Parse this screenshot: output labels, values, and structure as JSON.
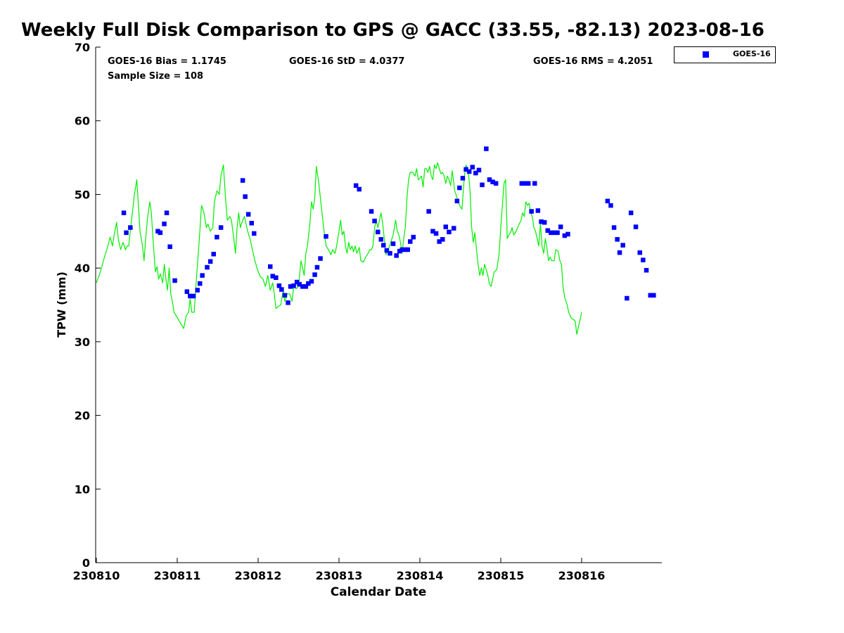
{
  "chart_data": {
    "type": "line+scatter",
    "title": "Weekly Full Disk Comparison to GPS @ GACC (33.55, -82.13) 2023-08-16",
    "xlabel": "Calendar Date",
    "ylabel": "TPW (mm)",
    "xlim": [
      0,
      7
    ],
    "ylim": [
      0,
      70
    ],
    "x_tick_labels": [
      "230810",
      "230811",
      "230812",
      "230813",
      "230814",
      "230815",
      "230816"
    ],
    "y_tick_labels": [
      "0",
      "10",
      "20",
      "30",
      "40",
      "50",
      "60",
      "70"
    ],
    "stats": {
      "bias": "GOES-16 Bias = 1.1745",
      "std": "GOES-16 StD = 4.0377",
      "rms": "GOES-16 RMS = 4.2051",
      "sample": "Sample Size = 108"
    },
    "legend": [
      {
        "label": "GOES-16",
        "color": "#0000ff",
        "marker": "square"
      }
    ],
    "colors": {
      "gps_line": "#00ee00",
      "goes_marker": "#0000ff"
    },
    "gps_series": {
      "name": "GPS",
      "points": [
        [
          0.0,
          38.0
        ],
        [
          0.05,
          39.5
        ],
        [
          0.1,
          41.5
        ],
        [
          0.13,
          42.5
        ],
        [
          0.17,
          44.2
        ],
        [
          0.2,
          43.0
        ],
        [
          0.22,
          44.5
        ],
        [
          0.25,
          46.2
        ],
        [
          0.27,
          44.0
        ],
        [
          0.3,
          42.5
        ],
        [
          0.33,
          43.5
        ],
        [
          0.36,
          42.5
        ],
        [
          0.38,
          43.0
        ],
        [
          0.4,
          43.0
        ],
        [
          0.43,
          46.0
        ],
        [
          0.45,
          48.0
        ],
        [
          0.47,
          50.0
        ],
        [
          0.5,
          52.0
        ],
        [
          0.52,
          48.5
        ],
        [
          0.54,
          45.0
        ],
        [
          0.57,
          43.0
        ],
        [
          0.59,
          41.0
        ],
        [
          0.61,
          44.0
        ],
        [
          0.63,
          46.5
        ],
        [
          0.66,
          49.0
        ],
        [
          0.68,
          47.5
        ],
        [
          0.7,
          44.0
        ],
        [
          0.73,
          39.5
        ],
        [
          0.75,
          40.2
        ],
        [
          0.77,
          38.5
        ],
        [
          0.79,
          39.2
        ],
        [
          0.82,
          38.0
        ],
        [
          0.84,
          40.5
        ],
        [
          0.86,
          38.5
        ],
        [
          0.88,
          37.0
        ],
        [
          0.9,
          40.0
        ],
        [
          0.92,
          36.5
        ],
        [
          0.94,
          35.5
        ],
        [
          0.96,
          34.0
        ],
        [
          1.0,
          33.3
        ],
        [
          1.04,
          32.5
        ],
        [
          1.08,
          31.8
        ],
        [
          1.11,
          33.5
        ],
        [
          1.14,
          34.0
        ],
        [
          1.16,
          35.8
        ],
        [
          1.18,
          34.0
        ],
        [
          1.21,
          34.0
        ],
        [
          1.24,
          39.0
        ],
        [
          1.27,
          43.5
        ],
        [
          1.3,
          48.5
        ],
        [
          1.33,
          47.5
        ],
        [
          1.36,
          45.5
        ],
        [
          1.38,
          46.0
        ],
        [
          1.41,
          45.0
        ],
        [
          1.44,
          45.5
        ],
        [
          1.46,
          49.0
        ],
        [
          1.49,
          50.5
        ],
        [
          1.52,
          50.0
        ],
        [
          1.54,
          52.5
        ],
        [
          1.57,
          54.0
        ],
        [
          1.6,
          49.0
        ],
        [
          1.62,
          46.5
        ],
        [
          1.65,
          47.0
        ],
        [
          1.67,
          46.5
        ],
        [
          1.7,
          44.0
        ],
        [
          1.72,
          42.0
        ],
        [
          1.74,
          45.5
        ],
        [
          1.76,
          47.5
        ],
        [
          1.78,
          45.5
        ],
        [
          1.81,
          46.5
        ],
        [
          1.83,
          47.0
        ],
        [
          1.85,
          46.0
        ],
        [
          1.87,
          45.0
        ],
        [
          1.9,
          44.0
        ],
        [
          1.93,
          42.5
        ],
        [
          1.96,
          41.0
        ],
        [
          2.0,
          39.5
        ],
        [
          2.03,
          38.8
        ],
        [
          2.06,
          38.5
        ],
        [
          2.09,
          37.5
        ],
        [
          2.12,
          39.0
        ],
        [
          2.15,
          37.0
        ],
        [
          2.18,
          38.0
        ],
        [
          2.2,
          36.5
        ],
        [
          2.22,
          34.5
        ],
        [
          2.25,
          34.8
        ],
        [
          2.28,
          35.0
        ],
        [
          2.31,
          37.0
        ],
        [
          2.33,
          35.5
        ],
        [
          2.36,
          36.5
        ],
        [
          2.39,
          36.5
        ],
        [
          2.42,
          35.5
        ],
        [
          2.44,
          37.5
        ],
        [
          2.47,
          37.2
        ],
        [
          2.5,
          37.5
        ],
        [
          2.53,
          41.0
        ],
        [
          2.55,
          40.0
        ],
        [
          2.57,
          39.0
        ],
        [
          2.59,
          42.0
        ],
        [
          2.61,
          43.0
        ],
        [
          2.64,
          46.0
        ],
        [
          2.66,
          49.0
        ],
        [
          2.68,
          48.0
        ],
        [
          2.7,
          49.5
        ],
        [
          2.72,
          53.8
        ],
        [
          2.75,
          51.5
        ],
        [
          2.78,
          48.5
        ],
        [
          2.81,
          45.5
        ],
        [
          2.84,
          43.0
        ],
        [
          2.87,
          42.5
        ],
        [
          2.9,
          41.8
        ],
        [
          2.92,
          42.5
        ],
        [
          2.95,
          42.0
        ],
        [
          2.97,
          43.0
        ],
        [
          3.0,
          45.0
        ],
        [
          3.02,
          46.5
        ],
        [
          3.04,
          44.5
        ],
        [
          3.06,
          45.0
        ],
        [
          3.08,
          43.0
        ],
        [
          3.1,
          42.0
        ],
        [
          3.12,
          43.5
        ],
        [
          3.14,
          42.5
        ],
        [
          3.16,
          43.0
        ],
        [
          3.18,
          42.2
        ],
        [
          3.2,
          43.0
        ],
        [
          3.22,
          42.0
        ],
        [
          3.25,
          42.8
        ],
        [
          3.27,
          41.0
        ],
        [
          3.3,
          40.8
        ],
        [
          3.33,
          41.5
        ],
        [
          3.36,
          42.0
        ],
        [
          3.38,
          42.5
        ],
        [
          3.4,
          42.5
        ],
        [
          3.42,
          43.0
        ],
        [
          3.44,
          45.5
        ],
        [
          3.46,
          46.5
        ],
        [
          3.48,
          45.5
        ],
        [
          3.5,
          46.5
        ],
        [
          3.52,
          47.5
        ],
        [
          3.54,
          46.0
        ],
        [
          3.56,
          44.0
        ],
        [
          3.58,
          41.8
        ],
        [
          3.61,
          42.5
        ],
        [
          3.64,
          43.5
        ],
        [
          3.67,
          44.5
        ],
        [
          3.7,
          46.5
        ],
        [
          3.72,
          45.0
        ],
        [
          3.74,
          44.5
        ],
        [
          3.76,
          43.5
        ],
        [
          3.78,
          42.0
        ],
        [
          3.8,
          44.0
        ],
        [
          3.82,
          45.5
        ],
        [
          3.84,
          49.5
        ],
        [
          3.86,
          52.0
        ],
        [
          3.88,
          53.0
        ],
        [
          3.91,
          53.0
        ],
        [
          3.94,
          52.5
        ],
        [
          3.96,
          53.5
        ],
        [
          3.98,
          52.0
        ],
        [
          4.0,
          52.2
        ],
        [
          4.02,
          52.5
        ],
        [
          4.04,
          51.0
        ],
        [
          4.06,
          53.5
        ],
        [
          4.08,
          53.5
        ],
        [
          4.1,
          53.0
        ],
        [
          4.12,
          53.8
        ],
        [
          4.14,
          52.5
        ],
        [
          4.16,
          52.0
        ],
        [
          4.18,
          54.0
        ],
        [
          4.2,
          53.5
        ],
        [
          4.22,
          54.3
        ],
        [
          4.24,
          53.5
        ],
        [
          4.26,
          52.8
        ],
        [
          4.28,
          53.0
        ],
        [
          4.3,
          52.5
        ],
        [
          4.32,
          51.5
        ],
        [
          4.34,
          52.5
        ],
        [
          4.36,
          52.0
        ],
        [
          4.38,
          51.2
        ],
        [
          4.4,
          53.2
        ],
        [
          4.43,
          50.5
        ],
        [
          4.46,
          49.5
        ],
        [
          4.49,
          48.5
        ],
        [
          4.52,
          48.0
        ],
        [
          4.55,
          52.5
        ],
        [
          4.57,
          54.0
        ],
        [
          4.6,
          53.0
        ],
        [
          4.62,
          50.5
        ],
        [
          4.64,
          45.5
        ],
        [
          4.66,
          43.5
        ],
        [
          4.68,
          44.8
        ],
        [
          4.7,
          42.5
        ],
        [
          4.72,
          40.5
        ],
        [
          4.74,
          39.0
        ],
        [
          4.76,
          40.0
        ],
        [
          4.78,
          39.0
        ],
        [
          4.8,
          40.5
        ],
        [
          4.82,
          39.8
        ],
        [
          4.84,
          39.0
        ],
        [
          4.86,
          37.8
        ],
        [
          4.88,
          37.5
        ],
        [
          4.9,
          38.5
        ],
        [
          4.92,
          39.5
        ],
        [
          4.95,
          39.8
        ],
        [
          4.98,
          42.0
        ],
        [
          5.0,
          45.5
        ],
        [
          5.02,
          48.5
        ],
        [
          5.04,
          51.5
        ],
        [
          5.06,
          52.0
        ],
        [
          5.08,
          44.0
        ],
        [
          5.1,
          44.5
        ],
        [
          5.12,
          44.8
        ],
        [
          5.14,
          45.5
        ],
        [
          5.16,
          44.5
        ],
        [
          5.19,
          45.0
        ],
        [
          5.22,
          45.8
        ],
        [
          5.25,
          46.5
        ],
        [
          5.27,
          47.5
        ],
        [
          5.29,
          47.0
        ],
        [
          5.31,
          49.0
        ],
        [
          5.33,
          48.5
        ],
        [
          5.35,
          48.8
        ],
        [
          5.37,
          47.5
        ],
        [
          5.39,
          47.0
        ],
        [
          5.41,
          45.5
        ],
        [
          5.43,
          45.0
        ],
        [
          5.45,
          44.0
        ],
        [
          5.47,
          43.0
        ],
        [
          5.49,
          46.0
        ],
        [
          5.51,
          43.0
        ],
        [
          5.53,
          42.0
        ],
        [
          5.55,
          44.0
        ],
        [
          5.57,
          42.8
        ],
        [
          5.59,
          41.0
        ],
        [
          5.61,
          41.5
        ],
        [
          5.63,
          41.0
        ],
        [
          5.66,
          41.0
        ],
        [
          5.68,
          42.5
        ],
        [
          5.71,
          42.3
        ],
        [
          5.73,
          41.0
        ],
        [
          5.75,
          40.5
        ],
        [
          5.77,
          37.5
        ],
        [
          5.79,
          36.0
        ],
        [
          5.82,
          35.0
        ],
        [
          5.84,
          34.0
        ],
        [
          5.87,
          33.2
        ],
        [
          5.9,
          33.0
        ],
        [
          5.92,
          32.8
        ],
        [
          5.94,
          31.0
        ],
        [
          5.96,
          32.0
        ],
        [
          5.98,
          33.0
        ],
        [
          6.0,
          34.0
        ]
      ]
    },
    "goes_series": {
      "name": "GOES-16",
      "points": [
        [
          0.34,
          47.5
        ],
        [
          0.37,
          44.8
        ],
        [
          0.42,
          45.5
        ],
        [
          0.76,
          45.0
        ],
        [
          0.79,
          44.8
        ],
        [
          0.84,
          46.0
        ],
        [
          0.87,
          47.5
        ],
        [
          0.91,
          42.9
        ],
        [
          0.97,
          38.3
        ],
        [
          1.12,
          36.8
        ],
        [
          1.16,
          36.2
        ],
        [
          1.2,
          36.2
        ],
        [
          1.25,
          37.0
        ],
        [
          1.28,
          37.9
        ],
        [
          1.31,
          39.0
        ],
        [
          1.37,
          40.1
        ],
        [
          1.41,
          40.9
        ],
        [
          1.45,
          41.9
        ],
        [
          1.49,
          44.2
        ],
        [
          1.54,
          45.5
        ],
        [
          1.81,
          51.9
        ],
        [
          1.84,
          49.7
        ],
        [
          1.88,
          47.3
        ],
        [
          1.92,
          46.1
        ],
        [
          1.95,
          44.7
        ],
        [
          2.15,
          40.2
        ],
        [
          2.18,
          38.9
        ],
        [
          2.22,
          38.7
        ],
        [
          2.26,
          37.6
        ],
        [
          2.29,
          37.1
        ],
        [
          2.33,
          36.3
        ],
        [
          2.37,
          35.3
        ],
        [
          2.4,
          37.5
        ],
        [
          2.44,
          37.6
        ],
        [
          2.48,
          38.1
        ],
        [
          2.51,
          37.8
        ],
        [
          2.55,
          37.5
        ],
        [
          2.59,
          37.5
        ],
        [
          2.62,
          37.9
        ],
        [
          2.66,
          38.2
        ],
        [
          2.7,
          39.1
        ],
        [
          2.73,
          40.1
        ],
        [
          2.77,
          41.3
        ],
        [
          2.84,
          44.3
        ],
        [
          3.21,
          51.2
        ],
        [
          3.25,
          50.7
        ],
        [
          3.4,
          47.7
        ],
        [
          3.44,
          46.4
        ],
        [
          3.48,
          44.9
        ],
        [
          3.52,
          43.9
        ],
        [
          3.55,
          43.1
        ],
        [
          3.59,
          42.4
        ],
        [
          3.63,
          42.0
        ],
        [
          3.67,
          43.3
        ],
        [
          3.71,
          41.7
        ],
        [
          3.75,
          42.3
        ],
        [
          3.78,
          42.5
        ],
        [
          3.82,
          42.5
        ],
        [
          3.85,
          42.5
        ],
        [
          3.88,
          43.6
        ],
        [
          3.92,
          44.2
        ],
        [
          4.11,
          47.7
        ],
        [
          4.16,
          45.0
        ],
        [
          4.2,
          44.7
        ],
        [
          4.24,
          43.6
        ],
        [
          4.28,
          43.9
        ],
        [
          4.32,
          45.6
        ],
        [
          4.36,
          44.9
        ],
        [
          4.42,
          45.4
        ],
        [
          4.46,
          49.1
        ],
        [
          4.49,
          50.9
        ],
        [
          4.53,
          52.2
        ],
        [
          4.57,
          53.4
        ],
        [
          4.61,
          53.1
        ],
        [
          4.65,
          53.7
        ],
        [
          4.69,
          52.9
        ],
        [
          4.73,
          53.3
        ],
        [
          4.77,
          51.3
        ],
        [
          4.82,
          56.2
        ],
        [
          4.86,
          52.0
        ],
        [
          4.9,
          51.7
        ],
        [
          4.94,
          51.5
        ],
        [
          5.26,
          51.5
        ],
        [
          5.3,
          51.5
        ],
        [
          5.34,
          51.5
        ],
        [
          5.38,
          47.7
        ],
        [
          5.42,
          51.5
        ],
        [
          5.46,
          47.8
        ],
        [
          5.5,
          46.3
        ],
        [
          5.54,
          46.2
        ],
        [
          5.58,
          45.1
        ],
        [
          5.62,
          44.8
        ],
        [
          5.66,
          44.8
        ],
        [
          5.7,
          44.8
        ],
        [
          5.74,
          45.6
        ],
        [
          5.79,
          44.4
        ],
        [
          5.83,
          44.6
        ],
        [
          6.32,
          49.1
        ],
        [
          6.36,
          48.5
        ],
        [
          6.4,
          45.5
        ],
        [
          6.44,
          43.9
        ],
        [
          6.47,
          42.1
        ],
        [
          6.51,
          43.1
        ],
        [
          6.56,
          35.9
        ],
        [
          6.61,
          47.5
        ],
        [
          6.67,
          45.6
        ],
        [
          6.72,
          42.1
        ],
        [
          6.76,
          41.1
        ],
        [
          6.8,
          39.7
        ],
        [
          6.85,
          36.3
        ],
        [
          6.89,
          36.3
        ]
      ]
    }
  }
}
